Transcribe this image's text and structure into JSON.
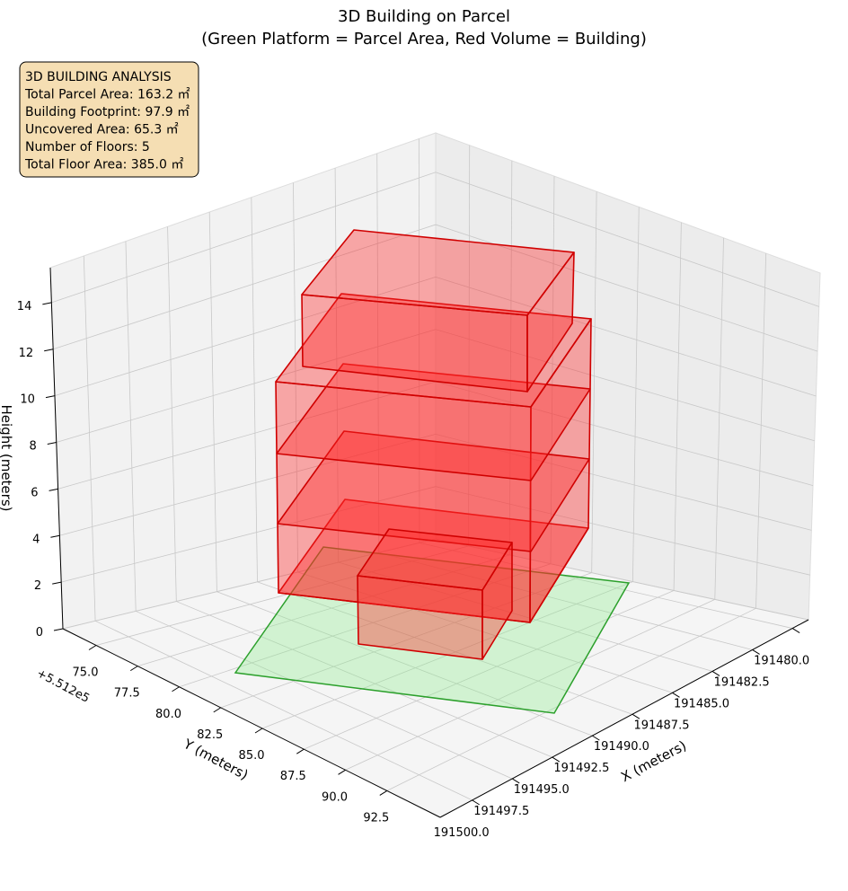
{
  "chart_data": {
    "type": "bar3d",
    "title": "3D Building on Parcel",
    "subtitle": "(Green Platform = Parcel Area, Red Volume = Building)",
    "xlabel": "X (meters)",
    "ylabel": "Y (meters)",
    "zlabel": "Height (meters)",
    "y_offset_label": "+5.512e5",
    "xlim": [
      191479,
      191502
    ],
    "xticks": [
      {
        "value": 191480,
        "label": "191480.0"
      },
      191482.5,
      {
        "value": 191485,
        "label": "191485.0"
      },
      191487.5,
      {
        "value": 191490,
        "label": "191490.0"
      },
      191492.5,
      {
        "value": 191495,
        "label": "191495.0"
      },
      191497.5,
      {
        "value": 191500,
        "label": "191500.0"
      }
    ],
    "ylim": [
      73,
      95.7
    ],
    "yticks": [
      {
        "value": 75,
        "label": "75.0"
      },
      77.5,
      {
        "value": 80,
        "label": "80.0"
      },
      82.5,
      {
        "value": 85,
        "label": "85.0"
      },
      87.5,
      {
        "value": 90,
        "label": "90.0"
      },
      92.5
    ],
    "zlim": [
      0,
      15.5
    ],
    "zticks": [
      0,
      2,
      4,
      6,
      8,
      10,
      12,
      14
    ],
    "grid": true,
    "annotation": [
      "3D BUILDING ANALYSIS",
      "Total Parcel Area: 163.2 ㎡",
      "Building Footprint: 97.9 ㎡",
      "Uncovered Area: 65.3 ㎡",
      "Number of Floors: 5",
      "Total Floor Area: 385.0 ㎡"
    ]
  }
}
